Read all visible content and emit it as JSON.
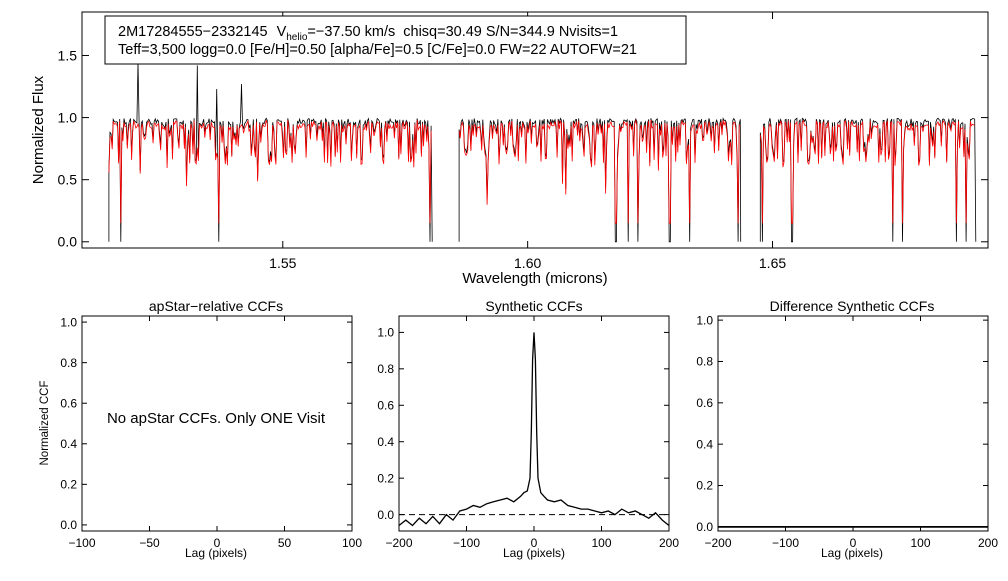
{
  "chart_data": [
    {
      "type": "line",
      "id": "spectrum",
      "title_box": {
        "line1": {
          "star_id": "2M17284555−2332145",
          "v_label": "V",
          "v_sub": "helio",
          "v_value": "=−37.50 km/s",
          "rest": "chisq=30.49  S/N=344.9  Nvisits=1"
        },
        "line2": "Teff=3,500 logg=0.0 [Fe/H]=0.50 [alpha/Fe]=0.5 [C/Fe]=0.0 FW=22 AUTOFW=21"
      },
      "xlabel": "Wavelength (microns)",
      "ylabel": "Normalized Flux",
      "xlim": [
        1.509,
        1.694
      ],
      "ylim": [
        -0.05,
        1.85
      ],
      "xticks": [
        1.55,
        1.6,
        1.65
      ],
      "xtick_labels": [
        "1.55",
        "1.60",
        "1.65"
      ],
      "yticks": [
        0.0,
        0.5,
        1.0,
        1.5
      ],
      "ytick_labels": [
        "0.0",
        "0.5",
        "1.0",
        "1.5"
      ],
      "chips": [
        [
          1.5145,
          1.5805
        ],
        [
          1.586,
          1.6435
        ],
        [
          1.6475,
          1.6915
        ]
      ],
      "series": [
        {
          "name": "observed",
          "color": "#000000"
        },
        {
          "name": "model",
          "color": "#ff0000"
        }
      ],
      "emission_spikes": [
        [
          1.5205,
          1.45
        ],
        [
          1.5325,
          1.42
        ],
        [
          1.5365,
          1.23
        ],
        [
          1.5415,
          1.27
        ]
      ],
      "deep_lines": [
        1.517,
        1.537,
        1.58,
        1.618,
        1.6205,
        1.6225,
        1.629,
        1.633,
        1.643,
        1.648,
        1.654,
        1.6745,
        1.6765,
        1.6875,
        1.6895
      ]
    },
    {
      "type": "line",
      "id": "apstar-ccf",
      "title": "apStar−relative CCFs",
      "xlabel": "Lag (pixels)",
      "ylabel": "Normalized CCF",
      "xlim": [
        -100,
        100
      ],
      "ylim": [
        -0.03,
        1.03
      ],
      "xticks": [
        -100,
        -50,
        0,
        50,
        100
      ],
      "xtick_labels": [
        "−100",
        "−50",
        "0",
        "50",
        "100"
      ],
      "yticks": [
        0.0,
        0.2,
        0.4,
        0.6,
        0.8,
        1.0
      ],
      "ytick_labels": [
        "0.0",
        "0.2",
        "0.4",
        "0.6",
        "0.8",
        "1.0"
      ],
      "message": "No apStar CCFs.  Only ONE Visit",
      "series": []
    },
    {
      "type": "line",
      "id": "synthetic-ccf",
      "title": "Synthetic CCFs",
      "xlabel": "Lag (pixels)",
      "ylabel": "",
      "xlim": [
        -200,
        200
      ],
      "ylim": [
        -0.09,
        1.09
      ],
      "xticks": [
        -200,
        -100,
        0,
        100,
        200
      ],
      "xtick_labels": [
        "−200",
        "−100",
        "0",
        "100",
        "200"
      ],
      "yticks": [
        0.0,
        0.2,
        0.4,
        0.6,
        0.8,
        1.0
      ],
      "ytick_labels": [
        "0.0",
        "0.2",
        "0.4",
        "0.6",
        "0.8",
        "1.0"
      ],
      "baseline": 0.0,
      "series": [
        {
          "name": "synthetic-ccf",
          "color": "#000000",
          "peak": {
            "x": 0,
            "y": 1.0
          },
          "x": [
            -200,
            -190,
            -180,
            -170,
            -160,
            -150,
            -140,
            -130,
            -120,
            -110,
            -100,
            -90,
            -80,
            -70,
            -60,
            -50,
            -40,
            -30,
            -20,
            -15,
            -10,
            -6,
            -4,
            -2,
            0,
            2,
            4,
            6,
            10,
            15,
            20,
            30,
            40,
            50,
            60,
            70,
            80,
            90,
            100,
            110,
            120,
            130,
            140,
            150,
            160,
            170,
            180,
            190,
            200
          ],
          "y": [
            -0.06,
            -0.03,
            -0.06,
            -0.02,
            -0.05,
            -0.01,
            -0.05,
            0.0,
            -0.03,
            0.02,
            0.03,
            0.05,
            0.04,
            0.06,
            0.07,
            0.08,
            0.09,
            0.07,
            0.1,
            0.12,
            0.13,
            0.2,
            0.45,
            0.85,
            1.0,
            0.85,
            0.45,
            0.2,
            0.12,
            0.1,
            0.08,
            0.07,
            0.08,
            0.05,
            0.04,
            0.03,
            0.03,
            0.02,
            0.01,
            0.02,
            0.0,
            0.03,
            0.01,
            0.02,
            0.0,
            -0.02,
            0.01,
            -0.03,
            -0.06
          ]
        }
      ]
    },
    {
      "type": "line",
      "id": "difference-ccf",
      "title": "Difference Synthetic CCFs",
      "xlabel": "Lag (pixels)",
      "ylabel": "",
      "xlim": [
        -200,
        200
      ],
      "ylim": [
        -0.02,
        1.02
      ],
      "xticks": [
        -200,
        -100,
        0,
        100,
        200
      ],
      "xtick_labels": [
        "−200",
        "−100",
        "0",
        "100",
        "200"
      ],
      "yticks": [
        0.0,
        0.2,
        0.4,
        0.6,
        0.8,
        1.0
      ],
      "ytick_labels": [
        "0.0",
        "0.2",
        "0.4",
        "0.6",
        "0.8",
        "1.0"
      ],
      "series": [
        {
          "name": "difference-ccf",
          "color": "#000000",
          "x": [
            -200,
            200
          ],
          "y": [
            0.0,
            0.0
          ]
        }
      ]
    }
  ]
}
